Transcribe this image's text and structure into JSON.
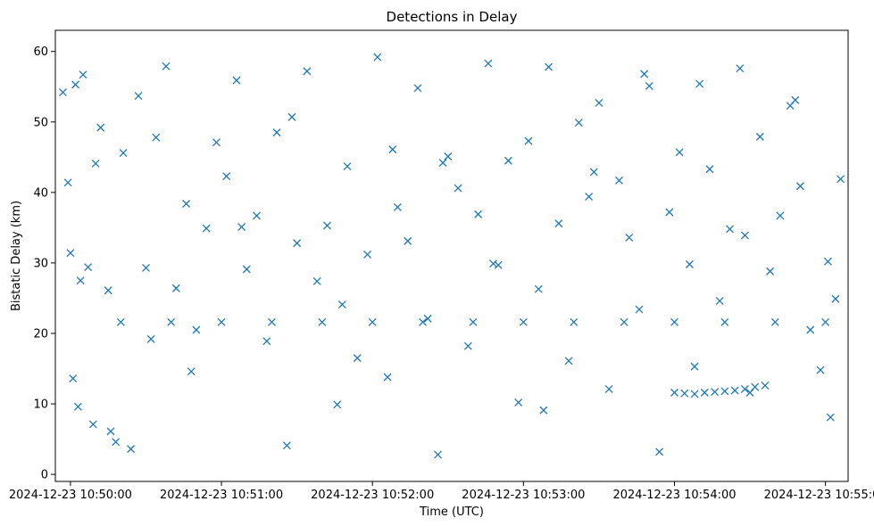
{
  "chart_data": {
    "type": "scatter",
    "title": "Detections in Delay",
    "xlabel": "Time (UTC)",
    "ylabel": "Bistatic Delay (km)",
    "xlim": [
      "2024-12-23 10:49:54",
      "2024-12-23 10:55:09"
    ],
    "ylim": [
      -1,
      63
    ],
    "xticks": [
      "2024-12-23 10:50:00",
      "2024-12-23 10:51:00",
      "2024-12-23 10:52:00",
      "2024-12-23 10:53:00",
      "2024-12-23 10:54:00",
      "2024-12-23 10:55:00"
    ],
    "yticks": [
      0,
      10,
      20,
      30,
      40,
      50,
      60
    ],
    "grid": false,
    "marker": "x",
    "color": "#1f77b4",
    "series": [
      {
        "x": [
          "2024-12-23 10:49:57",
          "2024-12-23 10:49:59",
          "2024-12-23 10:50:01",
          "2024-12-23 10:50:02",
          "2024-12-23 10:50:03",
          "2024-12-23 10:50:05",
          "2024-12-23 10:50:07",
          "2024-12-23 10:50:09",
          "2024-12-23 10:50:12",
          "2024-12-23 10:50:15",
          "2024-12-23 10:50:18",
          "2024-12-23 10:50:21",
          "2024-12-23 10:50:24",
          "2024-12-23 10:50:27",
          "2024-12-23 10:50:30",
          "2024-12-23 10:50:34",
          "2024-12-23 10:50:38",
          "2024-12-23 10:50:42",
          "2024-12-23 10:50:46",
          "2024-12-23 10:50:50",
          "2024-12-23 10:50:54",
          "2024-12-23 10:50:58",
          "2024-12-23 10:51:02",
          "2024-12-23 10:51:06",
          "2024-12-23 10:51:10",
          "2024-12-23 10:51:14",
          "2024-12-23 10:51:18",
          "2024-12-23 10:51:22",
          "2024-12-23 10:51:26",
          "2024-12-23 10:51:30",
          "2024-12-23 10:51:34",
          "2024-12-23 10:51:38",
          "2024-12-23 10:51:42",
          "2024-12-23 10:51:46",
          "2024-12-23 10:51:50",
          "2024-12-23 10:51:54",
          "2024-12-23 10:51:58",
          "2024-12-23 10:52:02",
          "2024-12-23 10:52:06",
          "2024-12-23 10:52:10",
          "2024-12-23 10:52:14",
          "2024-12-23 10:52:18",
          "2024-12-23 10:52:22",
          "2024-12-23 10:52:26",
          "2024-12-23 10:52:30",
          "2024-12-23 10:52:34",
          "2024-12-23 10:52:38",
          "2024-12-23 10:52:42",
          "2024-12-23 10:52:46",
          "2024-12-23 10:52:50",
          "2024-12-23 10:52:54",
          "2024-12-23 10:52:58",
          "2024-12-23 10:53:02",
          "2024-12-23 10:53:06",
          "2024-12-23 10:53:10",
          "2024-12-23 10:53:14",
          "2024-12-23 10:53:18",
          "2024-12-23 10:53:22",
          "2024-12-23 10:53:26",
          "2024-12-23 10:53:30",
          "2024-12-23 10:53:34",
          "2024-12-23 10:53:38",
          "2024-12-23 10:53:42",
          "2024-12-23 10:53:46",
          "2024-12-23 10:53:50",
          "2024-12-23 10:53:54",
          "2024-12-23 10:53:58",
          "2024-12-23 10:54:02",
          "2024-12-23 10:54:06",
          "2024-12-23 10:54:10",
          "2024-12-23 10:54:14",
          "2024-12-23 10:54:18",
          "2024-12-23 10:54:22",
          "2024-12-23 10:54:26",
          "2024-12-23 10:54:30",
          "2024-12-23 10:54:34",
          "2024-12-23 10:54:38",
          "2024-12-23 10:54:42",
          "2024-12-23 10:54:46",
          "2024-12-23 10:54:50",
          "2024-12-23 10:54:54",
          "2024-12-23 10:54:58",
          "2024-12-23 10:55:01",
          "2024-12-23 10:55:04",
          "2024-12-23 10:55:06",
          "2024-12-23 10:50:00",
          "2024-12-23 10:50:10",
          "2024-12-23 10:50:20",
          "2024-12-23 10:50:40",
          "2024-12-23 10:51:00",
          "2024-12-23 10:51:20",
          "2024-12-23 10:51:40",
          "2024-12-23 10:52:00",
          "2024-12-23 10:52:20",
          "2024-12-23 10:52:40",
          "2024-12-23 10:53:00",
          "2024-12-23 10:53:20",
          "2024-12-23 10:53:40",
          "2024-12-23 10:54:00",
          "2024-12-23 10:54:20",
          "2024-12-23 10:54:40",
          "2024-12-23 10:55:00",
          "2024-12-23 10:50:04",
          "2024-12-23 10:50:16",
          "2024-12-23 10:50:32",
          "2024-12-23 10:50:48",
          "2024-12-23 10:51:08",
          "2024-12-23 10:51:28",
          "2024-12-23 10:51:48",
          "2024-12-23 10:52:08",
          "2024-12-23 10:52:28",
          "2024-12-23 10:52:48",
          "2024-12-23 10:53:08",
          "2024-12-23 10:53:28",
          "2024-12-23 10:53:48",
          "2024-12-23 10:54:08",
          "2024-12-23 10:54:28",
          "2024-12-23 10:54:48",
          "2024-12-23 10:55:02",
          "2024-12-23 10:54:00",
          "2024-12-23 10:54:04",
          "2024-12-23 10:54:08",
          "2024-12-23 10:54:12",
          "2024-12-23 10:54:16",
          "2024-12-23 10:54:20",
          "2024-12-23 10:54:24",
          "2024-12-23 10:54:28",
          "2024-12-23 10:54:32",
          "2024-12-23 10:54:36"
        ],
        "y": [
          54.2,
          41.4,
          13.6,
          55.3,
          9.6,
          56.7,
          29.4,
          7.1,
          49.2,
          26.1,
          4.6,
          45.6,
          3.6,
          53.7,
          29.3,
          47.8,
          57.9,
          26.4,
          38.4,
          20.5,
          34.9,
          47.1,
          42.3,
          55.9,
          29.1,
          36.7,
          18.9,
          48.5,
          4.1,
          32.8,
          57.2,
          27.4,
          35.3,
          9.9,
          43.7,
          16.5,
          31.2,
          59.2,
          13.8,
          37.9,
          33.1,
          54.8,
          22.1,
          2.8,
          45.1,
          40.6,
          18.2,
          36.9,
          58.3,
          29.7,
          44.5,
          10.2,
          47.3,
          26.3,
          57.8,
          35.6,
          16.1,
          49.9,
          39.4,
          52.7,
          12.1,
          41.7,
          33.6,
          23.4,
          55.1,
          3.2,
          37.2,
          45.7,
          29.8,
          55.4,
          43.3,
          24.6,
          34.8,
          57.6,
          11.6,
          47.9,
          28.8,
          36.7,
          52.3,
          40.9,
          20.5,
          14.8,
          30.2,
          24.9,
          41.9,
          31.4,
          44.1,
          21.6,
          21.6,
          21.6,
          21.6,
          21.6,
          21.6,
          21.6,
          21.6,
          21.6,
          21.6,
          21.6,
          21.6,
          21.6,
          21.6,
          21.6,
          27.5,
          6.1,
          19.2,
          14.6,
          35.1,
          50.7,
          24.1,
          46.1,
          44.2,
          29.9,
          9.1,
          42.9,
          56.8,
          15.3,
          33.9,
          53.1,
          8.1,
          11.6,
          11.5,
          11.4,
          11.6,
          11.7,
          11.8,
          11.9,
          12.1,
          12.4,
          12.6
        ]
      }
    ]
  }
}
